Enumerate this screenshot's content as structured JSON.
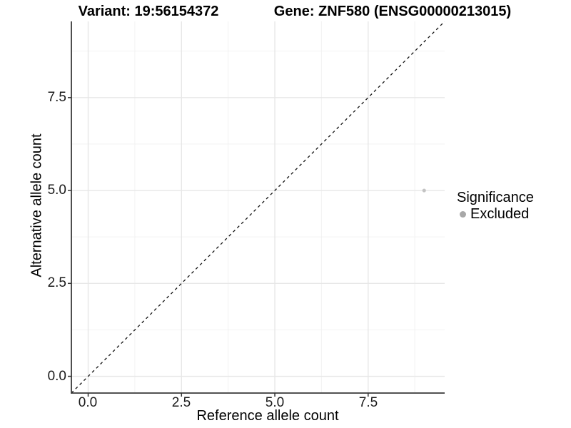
{
  "titles": {
    "variant": "Variant: 19:56154372",
    "gene": "Gene: ZNF580 (ENSG00000213015)"
  },
  "chart_data": {
    "type": "scatter",
    "title_left": "Variant: 19:56154372",
    "title_right": "Gene: ZNF580 (ENSG00000213015)",
    "xlabel": "Reference allele count",
    "ylabel": "Alternative allele count",
    "xlim": [
      -0.45,
      9.55
    ],
    "ylim": [
      -0.45,
      9.55
    ],
    "x_tick_values": [
      0,
      2.5,
      5,
      7.5
    ],
    "y_tick_values": [
      0,
      2.5,
      5,
      7.5
    ],
    "x_tick_labels": [
      "0.0",
      "2.5",
      "5.0",
      "7.5"
    ],
    "y_tick_labels": [
      "0.0",
      "2.5",
      "5.0",
      "7.5"
    ],
    "x_minor_values": [
      1.25,
      3.75,
      6.25,
      8.75
    ],
    "y_minor_values": [
      1.25,
      3.75,
      6.25,
      8.75
    ],
    "grid": true,
    "series": [
      {
        "name": "Excluded",
        "points": [
          {
            "x": 9,
            "y": 5
          }
        ],
        "color": "#c3c3c3"
      }
    ],
    "reference_line": {
      "equation": "y = x",
      "style": "dashed",
      "color": "#111111"
    },
    "legend": {
      "position": "right",
      "title": "Significance",
      "items": [
        {
          "label": "Excluded",
          "color": "#a8a8a8"
        }
      ]
    }
  },
  "colors": {
    "background": "#ffffff",
    "grid_major": "#e7e7e7",
    "grid_minor": "#f2f2f2",
    "axis_line": "#3a3a3a",
    "tick_mark": "#333333",
    "point": "#c3c3c3",
    "legend_dot": "#a8a8a8"
  }
}
